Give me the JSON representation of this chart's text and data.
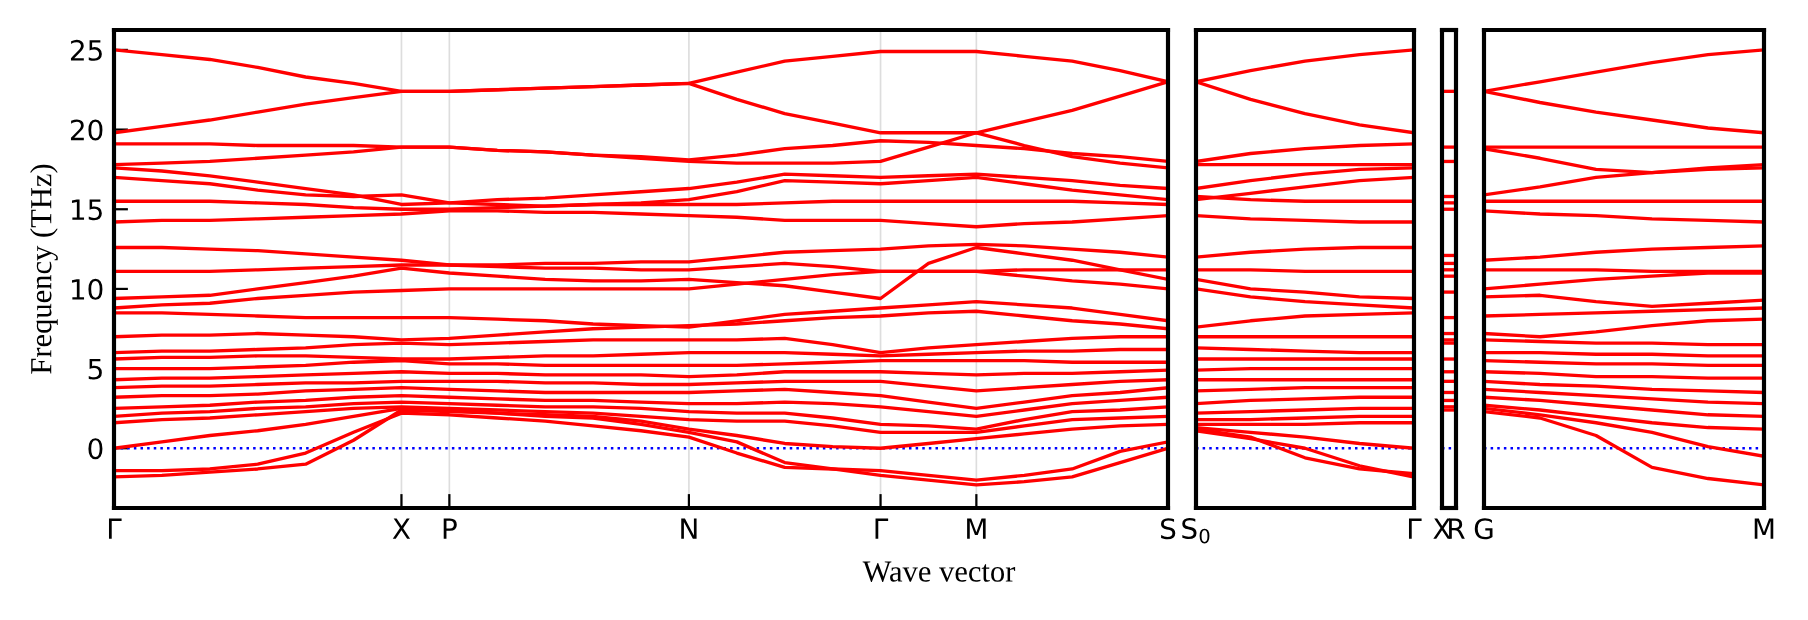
{
  "chart_data": [
    {
      "type": "line",
      "xlabel": "Wave vector",
      "ylabel": "Frequency (THz)",
      "line_style": "solid",
      "grid": "x",
      "categories": [
        "Γ",
        null,
        null,
        null,
        null,
        null,
        "X",
        "P",
        null,
        null,
        null,
        null,
        "N",
        null,
        null,
        null,
        "Γ",
        null,
        "M",
        null,
        null,
        null,
        "S"
      ],
      "ylim": [
        -3.75,
        26.25
      ],
      "yticks": [
        0,
        5,
        10,
        15,
        20,
        25
      ],
      "ref_lines": [
        {
          "axis": "y",
          "value": 0,
          "color": "#0000ff",
          "line_style": "dotted"
        }
      ],
      "series": [
        {
          "color": "#ff0000",
          "values": [
            25.0,
            24.7,
            24.4,
            23.9,
            23.3,
            22.9,
            22.4,
            22.4,
            22.5,
            22.6,
            22.7,
            22.8,
            22.9,
            23.6,
            24.3,
            24.6,
            24.9,
            24.9,
            24.9,
            24.6,
            24.3,
            23.7,
            23.0
          ]
        },
        {
          "color": "#ff0000",
          "values": [
            19.8,
            20.2,
            20.6,
            21.1,
            21.6,
            22.0,
            22.4,
            22.4,
            22.5,
            22.6,
            22.7,
            22.8,
            22.9,
            21.9,
            21.0,
            20.4,
            19.8,
            19.8,
            19.8,
            20.5,
            21.2,
            22.1,
            23.0
          ]
        },
        {
          "color": "#ff0000",
          "values": [
            19.1,
            19.1,
            19.1,
            19.0,
            19.0,
            19.0,
            18.9,
            18.9,
            18.7,
            18.6,
            18.4,
            18.3,
            18.1,
            18.4,
            18.8,
            19.0,
            19.3,
            19.2,
            19.0,
            18.8,
            18.5,
            18.3,
            18.0
          ]
        },
        {
          "color": "#ff0000",
          "values": [
            17.8,
            17.9,
            18.0,
            18.2,
            18.4,
            18.6,
            18.9,
            18.9,
            18.7,
            18.6,
            18.4,
            18.2,
            18.0,
            17.9,
            17.9,
            17.9,
            18.0,
            18.9,
            19.8,
            19.0,
            18.3,
            17.9,
            17.6
          ]
        },
        {
          "color": "#ff0000",
          "values": [
            17.6,
            17.4,
            17.1,
            16.7,
            16.3,
            15.9,
            15.3,
            15.4,
            15.6,
            15.7,
            15.9,
            16.1,
            16.3,
            16.7,
            17.2,
            17.1,
            17.0,
            17.1,
            17.2,
            17.0,
            16.8,
            16.5,
            16.3
          ]
        },
        {
          "color": "#ff0000",
          "values": [
            17.0,
            16.8,
            16.6,
            16.2,
            15.9,
            15.8,
            15.9,
            15.4,
            15.3,
            15.2,
            15.3,
            15.4,
            15.6,
            16.1,
            16.8,
            16.7,
            16.6,
            16.8,
            17.0,
            16.6,
            16.2,
            15.9,
            15.6
          ]
        },
        {
          "color": "#ff0000",
          "values": [
            15.5,
            15.5,
            15.5,
            15.4,
            15.3,
            15.1,
            15.0,
            15.0,
            15.1,
            15.2,
            15.3,
            15.3,
            15.3,
            15.3,
            15.4,
            15.5,
            15.5,
            15.5,
            15.5,
            15.5,
            15.5,
            15.4,
            15.3
          ]
        },
        {
          "color": "#ff0000",
          "values": [
            14.2,
            14.3,
            14.3,
            14.4,
            14.5,
            14.6,
            14.7,
            14.9,
            14.9,
            14.8,
            14.8,
            14.7,
            14.6,
            14.5,
            14.3,
            14.3,
            14.3,
            14.1,
            13.9,
            14.1,
            14.2,
            14.4,
            14.6
          ]
        },
        {
          "color": "#ff0000",
          "values": [
            12.6,
            12.6,
            12.5,
            12.4,
            12.2,
            12.0,
            11.8,
            11.5,
            11.5,
            11.6,
            11.6,
            11.7,
            11.7,
            12.0,
            12.3,
            12.4,
            12.5,
            12.7,
            12.8,
            12.7,
            12.5,
            12.3,
            12.0
          ]
        },
        {
          "color": "#ff0000",
          "values": [
            11.1,
            11.1,
            11.1,
            11.2,
            11.3,
            11.4,
            11.5,
            11.5,
            11.4,
            11.3,
            11.3,
            11.2,
            11.2,
            11.4,
            11.6,
            11.4,
            11.1,
            11.1,
            11.1,
            11.2,
            11.2,
            11.2,
            11.2
          ]
        },
        {
          "color": "#ff0000",
          "values": [
            9.4,
            9.5,
            9.6,
            10.0,
            10.4,
            10.8,
            11.3,
            11.0,
            10.8,
            10.6,
            10.5,
            10.5,
            10.6,
            10.4,
            10.2,
            9.8,
            9.4,
            11.6,
            12.6,
            12.2,
            11.8,
            11.2,
            10.6
          ]
        },
        {
          "color": "#ff0000",
          "values": [
            8.8,
            9.0,
            9.1,
            9.4,
            9.6,
            9.8,
            9.9,
            10.0,
            10.0,
            10.0,
            10.0,
            10.0,
            10.0,
            10.3,
            10.6,
            10.9,
            11.1,
            11.1,
            11.1,
            10.8,
            10.5,
            10.3,
            10.0
          ]
        },
        {
          "color": "#ff0000",
          "values": [
            8.5,
            8.5,
            8.4,
            8.3,
            8.2,
            8.2,
            8.2,
            8.2,
            8.1,
            8.0,
            7.8,
            7.7,
            7.6,
            8.0,
            8.4,
            8.6,
            8.8,
            9.0,
            9.2,
            9.0,
            8.8,
            8.4,
            8.0
          ]
        },
        {
          "color": "#ff0000",
          "values": [
            7.0,
            7.1,
            7.1,
            7.2,
            7.1,
            7.0,
            6.8,
            6.9,
            7.1,
            7.3,
            7.5,
            7.6,
            7.7,
            7.8,
            8.0,
            8.2,
            8.3,
            8.5,
            8.6,
            8.3,
            8.0,
            7.8,
            7.5
          ]
        },
        {
          "color": "#ff0000",
          "values": [
            6.0,
            6.1,
            6.1,
            6.2,
            6.3,
            6.5,
            6.6,
            6.5,
            6.6,
            6.7,
            6.8,
            6.8,
            6.8,
            6.8,
            6.9,
            6.5,
            6.0,
            6.3,
            6.5,
            6.7,
            6.9,
            7.0,
            7.0
          ]
        },
        {
          "color": "#ff0000",
          "values": [
            5.6,
            5.7,
            5.7,
            5.8,
            5.8,
            5.7,
            5.6,
            5.6,
            5.7,
            5.8,
            5.8,
            5.9,
            6.0,
            6.0,
            6.0,
            5.9,
            5.8,
            5.9,
            6.0,
            6.1,
            6.1,
            6.2,
            6.2
          ]
        },
        {
          "color": "#ff0000",
          "values": [
            5.0,
            5.0,
            5.0,
            5.1,
            5.2,
            5.4,
            5.5,
            5.3,
            5.3,
            5.2,
            5.2,
            5.2,
            5.2,
            5.2,
            5.3,
            5.4,
            5.5,
            5.5,
            5.5,
            5.5,
            5.4,
            5.4,
            5.4
          ]
        },
        {
          "color": "#ff0000",
          "values": [
            4.3,
            4.4,
            4.4,
            4.5,
            4.6,
            4.7,
            4.8,
            4.7,
            4.7,
            4.6,
            4.6,
            4.6,
            4.5,
            4.6,
            4.8,
            4.8,
            4.8,
            4.7,
            4.6,
            4.7,
            4.7,
            4.8,
            4.9
          ]
        },
        {
          "color": "#ff0000",
          "values": [
            3.8,
            3.9,
            3.9,
            4.0,
            4.1,
            4.1,
            4.2,
            4.2,
            4.2,
            4.1,
            4.1,
            4.0,
            4.0,
            4.1,
            4.2,
            4.2,
            4.2,
            3.9,
            3.6,
            3.8,
            4.0,
            4.2,
            4.3
          ]
        },
        {
          "color": "#ff0000",
          "values": [
            3.2,
            3.3,
            3.3,
            3.4,
            3.6,
            3.7,
            3.8,
            3.7,
            3.6,
            3.5,
            3.5,
            3.5,
            3.5,
            3.6,
            3.7,
            3.5,
            3.3,
            2.9,
            2.5,
            2.9,
            3.3,
            3.5,
            3.8
          ]
        },
        {
          "color": "#ff0000",
          "values": [
            2.5,
            2.6,
            2.7,
            2.9,
            3.0,
            3.2,
            3.3,
            3.2,
            3.1,
            3.0,
            3.0,
            2.9,
            2.8,
            2.8,
            2.9,
            2.8,
            2.6,
            2.3,
            2.0,
            2.4,
            2.8,
            3.0,
            3.2
          ]
        },
        {
          "color": "#ff0000",
          "values": [
            2.0,
            2.2,
            2.3,
            2.5,
            2.6,
            2.8,
            2.9,
            2.8,
            2.7,
            2.6,
            2.6,
            2.5,
            2.3,
            2.2,
            2.2,
            1.9,
            1.5,
            1.4,
            1.2,
            1.8,
            2.3,
            2.4,
            2.6
          ]
        },
        {
          "color": "#ff0000",
          "values": [
            1.6,
            1.8,
            1.9,
            2.1,
            2.3,
            2.5,
            2.6,
            2.5,
            2.4,
            2.3,
            2.2,
            2.0,
            1.8,
            1.7,
            1.7,
            1.4,
            1.0,
            1.0,
            1.0,
            1.4,
            1.8,
            1.9,
            2.0
          ]
        },
        {
          "color": "#ff0000",
          "values": [
            0.0,
            0.4,
            0.8,
            1.1,
            1.5,
            2.0,
            2.5,
            2.4,
            2.2,
            2.1,
            2.0,
            1.7,
            1.2,
            0.8,
            0.3,
            0.1,
            0.0,
            0.3,
            0.6,
            0.9,
            1.2,
            1.4,
            1.5
          ]
        },
        {
          "color": "#ff0000",
          "values": [
            -1.4,
            -1.4,
            -1.3,
            -1.0,
            -0.3,
            1.0,
            2.2,
            2.1,
            1.9,
            1.7,
            1.4,
            1.1,
            0.7,
            -0.3,
            -1.2,
            -1.3,
            -1.4,
            -1.7,
            -2.0,
            -1.7,
            -1.3,
            -0.2,
            0.4
          ]
        },
        {
          "color": "#ff0000",
          "values": [
            -1.8,
            -1.7,
            -1.5,
            -1.3,
            -1.0,
            0.5,
            2.4,
            2.3,
            2.2,
            2.0,
            1.9,
            1.5,
            1.0,
            0.4,
            -0.9,
            -1.3,
            -1.7,
            -2.0,
            -2.3,
            -2.1,
            -1.8,
            -0.9,
            0.0
          ]
        }
      ]
    },
    {
      "type": "line",
      "line_style": "solid",
      "tick_labels": "x",
      "categories": [
        "S$_{0}$",
        null,
        null,
        null,
        "Γ"
      ],
      "ylim": [
        -3.75,
        26.25
      ],
      "ref_lines": [
        {
          "axis": "y",
          "value": 0,
          "color": "#0000ff",
          "line_style": "dotted"
        }
      ],
      "series": [
        {
          "color": "#ff0000",
          "values": [
            23.0,
            23.7,
            24.3,
            24.7,
            25.0
          ]
        },
        {
          "color": "#ff0000",
          "values": [
            23.0,
            21.9,
            21.0,
            20.3,
            19.8
          ]
        },
        {
          "color": "#ff0000",
          "values": [
            18.0,
            18.5,
            18.8,
            19.0,
            19.1
          ]
        },
        {
          "color": "#ff0000",
          "values": [
            17.8,
            17.8,
            17.8,
            17.8,
            17.8
          ]
        },
        {
          "color": "#ff0000",
          "values": [
            16.3,
            16.8,
            17.2,
            17.5,
            17.6
          ]
        },
        {
          "color": "#ff0000",
          "values": [
            15.6,
            16.0,
            16.4,
            16.8,
            17.0
          ]
        },
        {
          "color": "#ff0000",
          "values": [
            15.8,
            15.6,
            15.5,
            15.5,
            15.5
          ]
        },
        {
          "color": "#ff0000",
          "values": [
            14.6,
            14.4,
            14.3,
            14.2,
            14.2
          ]
        },
        {
          "color": "#ff0000",
          "values": [
            12.0,
            12.3,
            12.5,
            12.6,
            12.6
          ]
        },
        {
          "color": "#ff0000",
          "values": [
            11.2,
            11.2,
            11.1,
            11.1,
            11.1
          ]
        },
        {
          "color": "#ff0000",
          "values": [
            10.6,
            10.0,
            9.8,
            9.5,
            9.4
          ]
        },
        {
          "color": "#ff0000",
          "values": [
            10.0,
            9.5,
            9.2,
            9.0,
            8.8
          ]
        },
        {
          "color": "#ff0000",
          "values": [
            7.6,
            8.0,
            8.3,
            8.4,
            8.5
          ]
        },
        {
          "color": "#ff0000",
          "values": [
            7.0,
            7.0,
            7.0,
            7.0,
            7.0
          ]
        },
        {
          "color": "#ff0000",
          "values": [
            6.3,
            6.2,
            6.1,
            6.0,
            6.0
          ]
        },
        {
          "color": "#ff0000",
          "values": [
            5.6,
            5.6,
            5.6,
            5.6,
            5.6
          ]
        },
        {
          "color": "#ff0000",
          "values": [
            4.9,
            5.0,
            5.0,
            5.0,
            5.0
          ]
        },
        {
          "color": "#ff0000",
          "values": [
            4.3,
            4.3,
            4.3,
            4.3,
            4.3
          ]
        },
        {
          "color": "#ff0000",
          "values": [
            3.6,
            3.7,
            3.8,
            3.8,
            3.8
          ]
        },
        {
          "color": "#ff0000",
          "values": [
            2.8,
            3.0,
            3.1,
            3.2,
            3.2
          ]
        },
        {
          "color": "#ff0000",
          "values": [
            2.2,
            2.3,
            2.4,
            2.5,
            2.5
          ]
        },
        {
          "color": "#ff0000",
          "values": [
            1.8,
            1.8,
            1.9,
            2.0,
            2.0
          ]
        },
        {
          "color": "#ff0000",
          "values": [
            1.5,
            1.5,
            1.5,
            1.6,
            1.6
          ]
        },
        {
          "color": "#ff0000",
          "values": [
            1.3,
            1.0,
            0.7,
            0.3,
            0.0
          ]
        },
        {
          "color": "#ff0000",
          "values": [
            1.2,
            0.7,
            -0.6,
            -1.3,
            -1.6
          ]
        },
        {
          "color": "#ff0000",
          "values": [
            1.1,
            0.6,
            0.0,
            -1.1,
            -1.8
          ]
        }
      ]
    },
    {
      "type": "line",
      "line_style": "solid",
      "tick_labels": "x",
      "categories": [
        "X",
        "R"
      ],
      "ylim": [
        -3.75,
        26.25
      ],
      "ref_lines": [
        {
          "axis": "y",
          "value": 0,
          "color": "#0000ff",
          "line_style": "dotted"
        }
      ],
      "series": [
        {
          "color": "#ff0000",
          "values": [
            22.4,
            22.4
          ]
        },
        {
          "color": "#ff0000",
          "values": [
            18.9,
            18.9
          ]
        },
        {
          "color": "#ff0000",
          "values": [
            18.0,
            18.0
          ]
        },
        {
          "color": "#ff0000",
          "values": [
            15.8,
            15.8
          ]
        },
        {
          "color": "#ff0000",
          "values": [
            15.4,
            15.4
          ]
        },
        {
          "color": "#ff0000",
          "values": [
            15.0,
            15.0
          ]
        },
        {
          "color": "#ff0000",
          "values": [
            12.1,
            12.1
          ]
        },
        {
          "color": "#ff0000",
          "values": [
            11.6,
            11.6
          ]
        },
        {
          "color": "#ff0000",
          "values": [
            11.2,
            11.2
          ]
        },
        {
          "color": "#ff0000",
          "values": [
            10.8,
            10.8
          ]
        },
        {
          "color": "#ff0000",
          "values": [
            9.8,
            9.8
          ]
        },
        {
          "color": "#ff0000",
          "values": [
            8.2,
            8.2
          ]
        },
        {
          "color": "#ff0000",
          "values": [
            7.2,
            7.2
          ]
        },
        {
          "color": "#ff0000",
          "values": [
            6.8,
            6.8
          ]
        },
        {
          "color": "#ff0000",
          "values": [
            6.6,
            6.6
          ]
        },
        {
          "color": "#ff0000",
          "values": [
            5.6,
            5.6
          ]
        },
        {
          "color": "#ff0000",
          "values": [
            4.8,
            4.8
          ]
        },
        {
          "color": "#ff0000",
          "values": [
            4.2,
            4.2
          ]
        },
        {
          "color": "#ff0000",
          "values": [
            3.5,
            3.5
          ]
        },
        {
          "color": "#ff0000",
          "values": [
            3.0,
            3.0
          ]
        },
        {
          "color": "#ff0000",
          "values": [
            2.6,
            2.6
          ]
        },
        {
          "color": "#ff0000",
          "values": [
            2.4,
            2.4
          ]
        }
      ]
    },
    {
      "type": "line",
      "line_style": "solid",
      "tick_labels": "x",
      "categories": [
        "G",
        null,
        null,
        null,
        null,
        "M"
      ],
      "ylim": [
        -3.75,
        26.25
      ],
      "ref_lines": [
        {
          "axis": "y",
          "value": 0,
          "color": "#0000ff",
          "line_style": "dotted"
        }
      ],
      "series": [
        {
          "color": "#ff0000",
          "values": [
            22.4,
            23.0,
            23.6,
            24.2,
            24.7,
            25.0
          ]
        },
        {
          "color": "#ff0000",
          "values": [
            22.4,
            21.7,
            21.1,
            20.6,
            20.1,
            19.8
          ]
        },
        {
          "color": "#ff0000",
          "values": [
            18.9,
            18.9,
            18.9,
            18.9,
            18.9,
            18.9
          ]
        },
        {
          "color": "#ff0000",
          "values": [
            18.8,
            18.2,
            17.5,
            17.3,
            17.6,
            17.8
          ]
        },
        {
          "color": "#ff0000",
          "values": [
            15.9,
            16.4,
            17.0,
            17.3,
            17.5,
            17.6
          ]
        },
        {
          "color": "#ff0000",
          "values": [
            15.5,
            15.5,
            15.5,
            15.5,
            15.5,
            15.5
          ]
        },
        {
          "color": "#ff0000",
          "values": [
            14.9,
            14.7,
            14.6,
            14.4,
            14.3,
            14.2
          ]
        },
        {
          "color": "#ff0000",
          "values": [
            11.8,
            12.0,
            12.3,
            12.5,
            12.6,
            12.7
          ]
        },
        {
          "color": "#ff0000",
          "values": [
            11.2,
            11.2,
            11.2,
            11.1,
            11.1,
            11.1
          ]
        },
        {
          "color": "#ff0000",
          "values": [
            10.0,
            10.3,
            10.6,
            10.8,
            11.0,
            11.0
          ]
        },
        {
          "color": "#ff0000",
          "values": [
            9.5,
            9.6,
            9.2,
            8.9,
            9.1,
            9.3
          ]
        },
        {
          "color": "#ff0000",
          "values": [
            8.3,
            8.4,
            8.5,
            8.6,
            8.7,
            8.8
          ]
        },
        {
          "color": "#ff0000",
          "values": [
            7.2,
            7.0,
            7.3,
            7.7,
            8.0,
            8.1
          ]
        },
        {
          "color": "#ff0000",
          "values": [
            6.8,
            6.7,
            6.6,
            6.6,
            6.5,
            6.5
          ]
        },
        {
          "color": "#ff0000",
          "values": [
            6.0,
            6.0,
            5.9,
            5.9,
            5.8,
            5.8
          ]
        },
        {
          "color": "#ff0000",
          "values": [
            5.5,
            5.4,
            5.3,
            5.3,
            5.2,
            5.2
          ]
        },
        {
          "color": "#ff0000",
          "values": [
            4.8,
            4.7,
            4.5,
            4.5,
            4.4,
            4.4
          ]
        },
        {
          "color": "#ff0000",
          "values": [
            4.2,
            4.0,
            3.9,
            3.7,
            3.6,
            3.5
          ]
        },
        {
          "color": "#ff0000",
          "values": [
            3.7,
            3.5,
            3.3,
            3.1,
            2.9,
            2.8
          ]
        },
        {
          "color": "#ff0000",
          "values": [
            3.2,
            3.0,
            2.7,
            2.4,
            2.1,
            2.0
          ]
        },
        {
          "color": "#ff0000",
          "values": [
            2.7,
            2.4,
            2.0,
            1.6,
            1.3,
            1.2
          ]
        },
        {
          "color": "#ff0000",
          "values": [
            2.5,
            2.1,
            1.6,
            1.0,
            0.1,
            -0.5
          ]
        },
        {
          "color": "#ff0000",
          "values": [
            2.3,
            1.9,
            0.8,
            -1.2,
            -1.9,
            -2.3
          ]
        }
      ]
    }
  ]
}
